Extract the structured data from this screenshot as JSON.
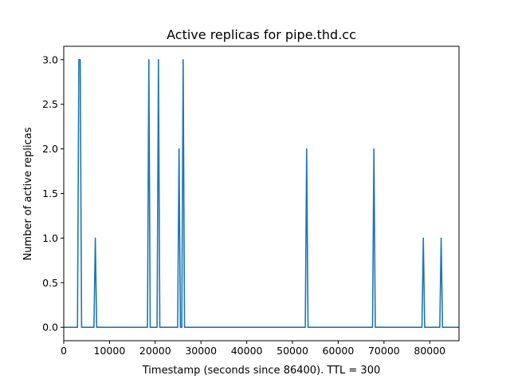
{
  "chart_data": {
    "type": "line",
    "title": "Active replicas for pipe.thd.cc",
    "xlabel": "Timestamp (seconds since 86400). TTL = 300",
    "ylabel": "Number of active replicas",
    "xlim": [
      0,
      86400
    ],
    "ylim": [
      -0.15,
      3.15
    ],
    "x_ticks": [
      0,
      10000,
      20000,
      30000,
      40000,
      50000,
      60000,
      70000,
      80000
    ],
    "x_tick_labels": [
      "0",
      "10000",
      "20000",
      "30000",
      "40000",
      "50000",
      "60000",
      "70000",
      "80000"
    ],
    "y_ticks": [
      0.0,
      0.5,
      1.0,
      1.5,
      2.0,
      2.5,
      3.0
    ],
    "y_tick_labels": [
      "0.0",
      "0.5",
      "1.0",
      "1.5",
      "2.0",
      "2.5",
      "3.0"
    ],
    "grid": false,
    "color": "#1f77b4",
    "series": [
      {
        "x": [
          0,
          3000,
          3300,
          3600,
          3900,
          6600,
          6900,
          7200,
          18300,
          18600,
          18900,
          20400,
          20700,
          21000,
          24900,
          25200,
          25500,
          25800,
          26100,
          26400,
          52800,
          53100,
          53400,
          67500,
          67800,
          68100,
          78300,
          78600,
          78900,
          82200,
          82500,
          82800,
          86400
        ],
        "y": [
          0,
          0,
          3,
          3,
          0,
          0,
          1,
          0,
          0,
          3,
          0,
          0,
          3,
          0,
          0,
          2,
          0,
          0,
          3,
          0,
          0,
          2,
          0,
          0,
          2,
          0,
          0,
          1,
          0,
          0,
          1,
          0,
          0
        ]
      }
    ]
  }
}
